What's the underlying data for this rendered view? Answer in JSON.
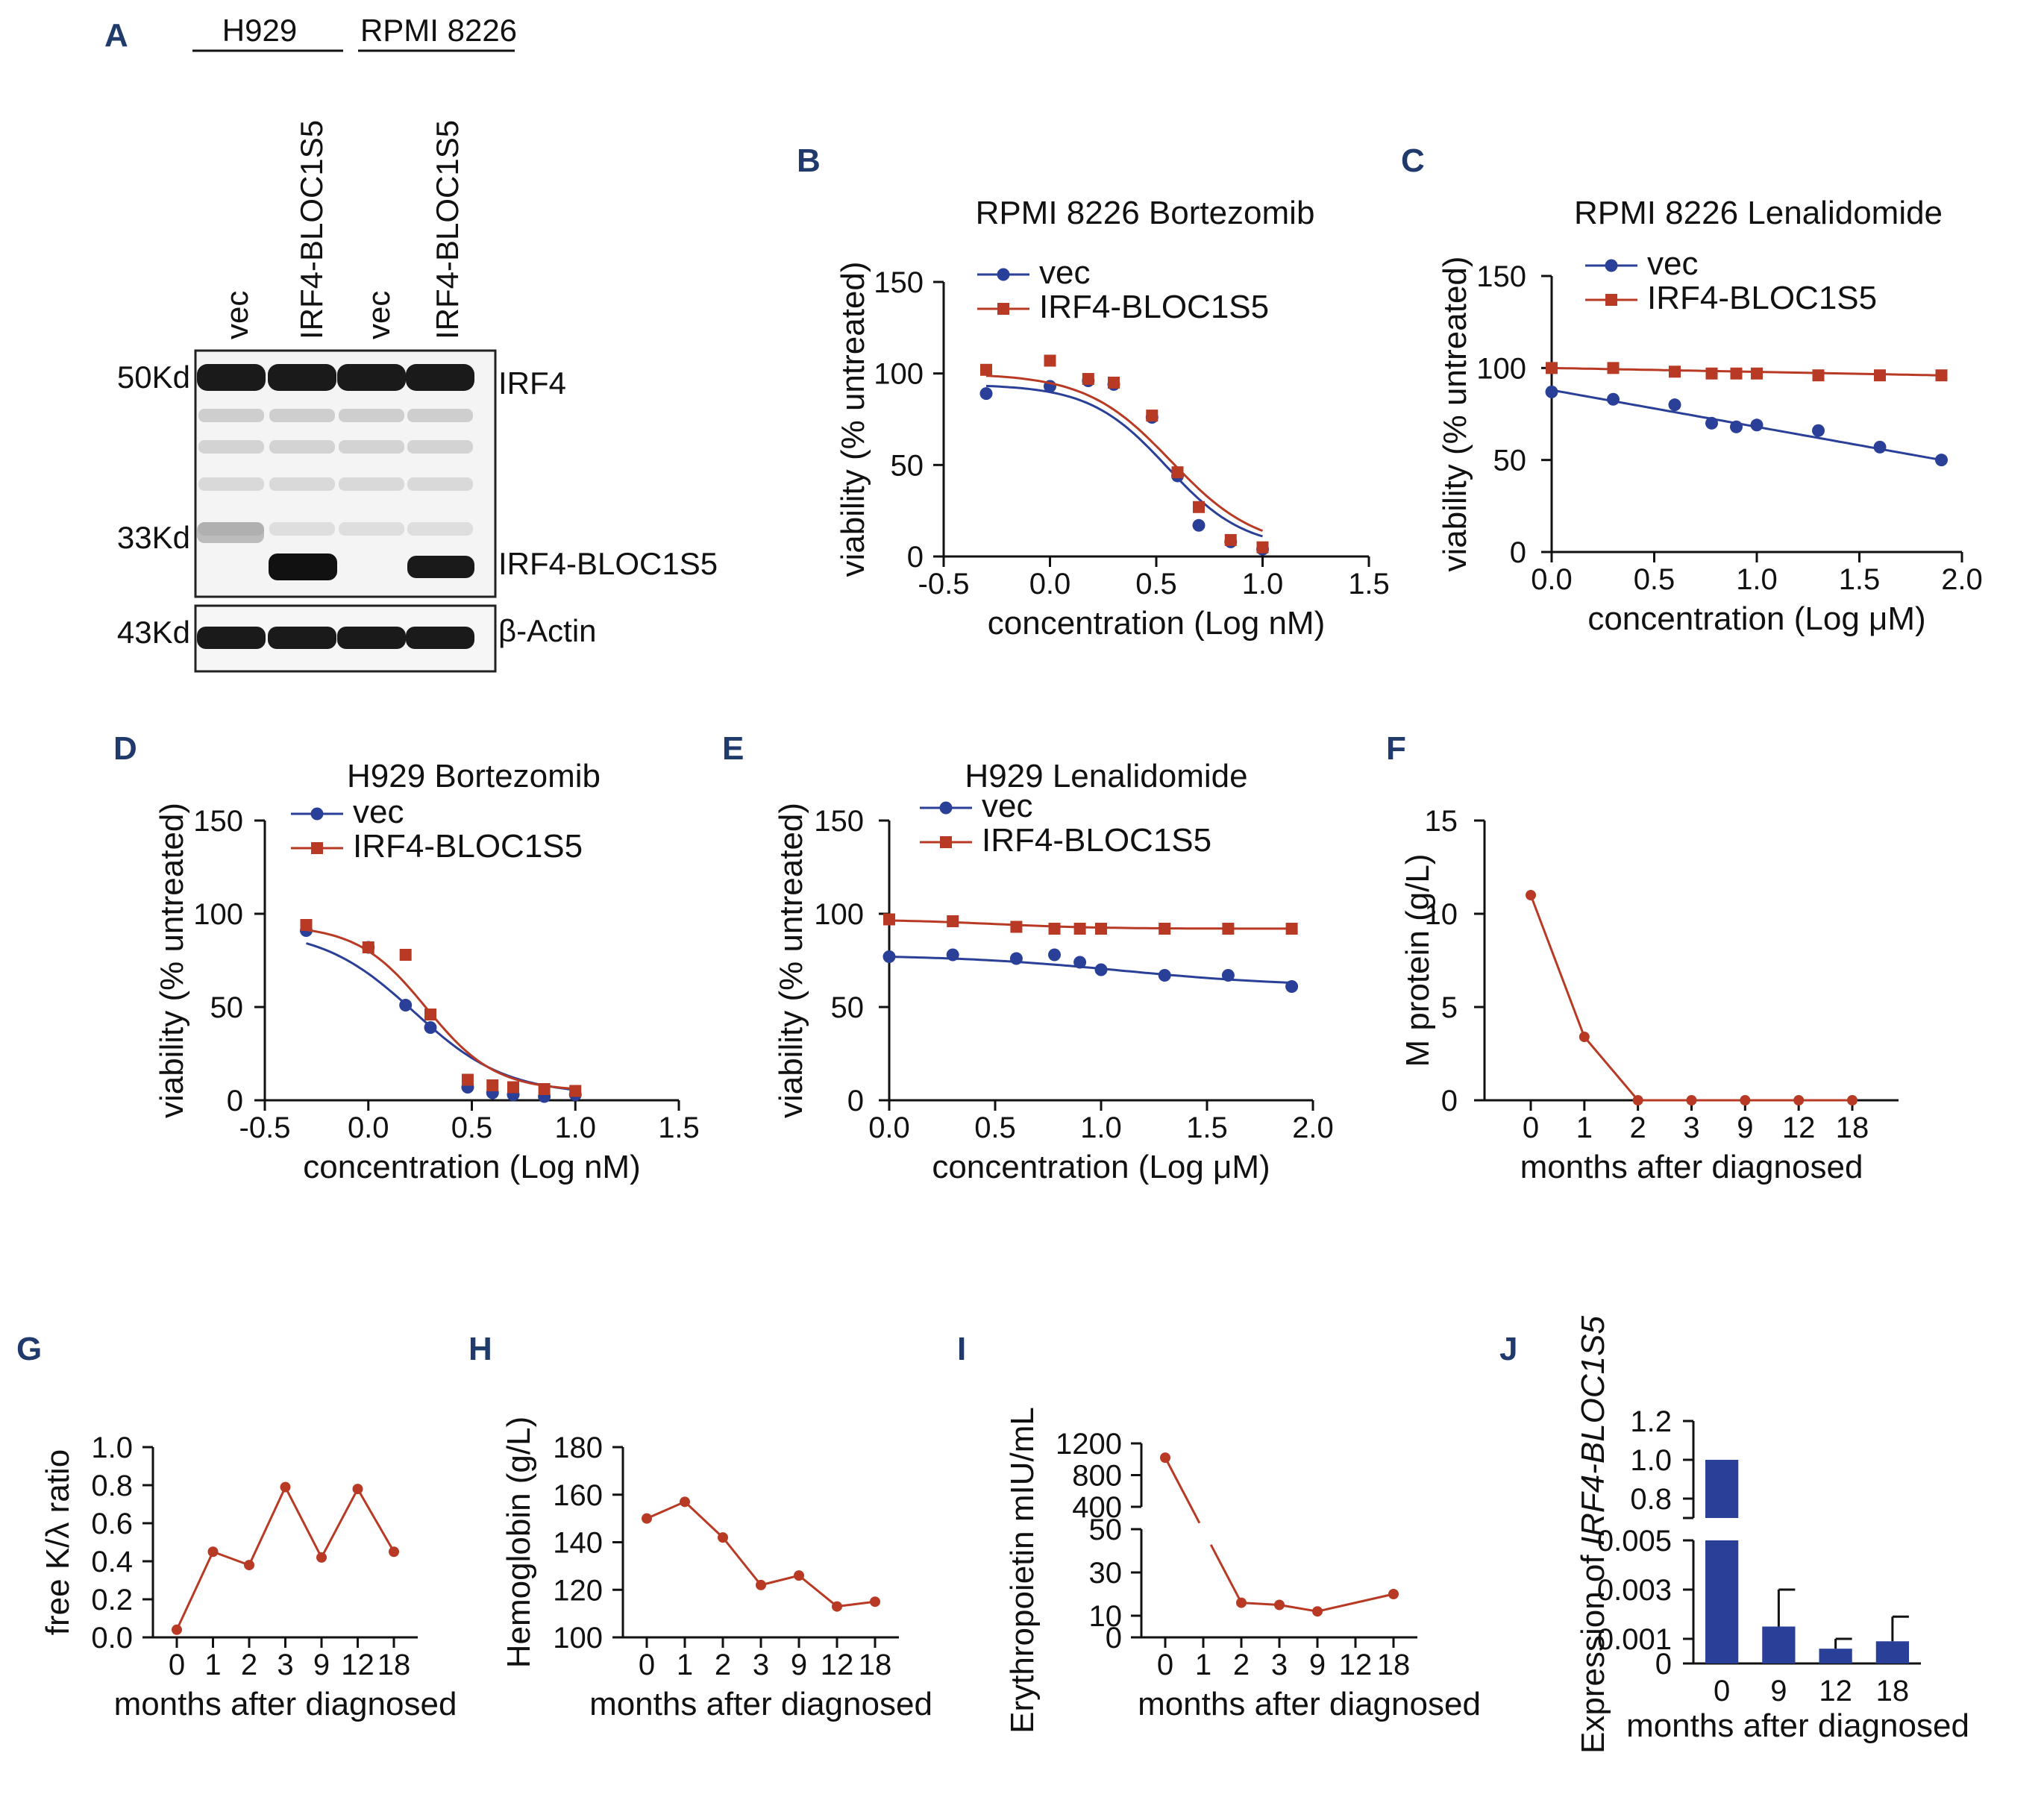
{
  "colors": {
    "blue": "#2a3f98",
    "red": "#b83a24",
    "panel": "#1f3a6b",
    "axis": "#111111"
  },
  "panel_a": {
    "letter": "A",
    "groups": [
      "H929",
      "RPMI 8226"
    ],
    "lanes": [
      "vec",
      "IRF4-BLOC1S5",
      "vec",
      "IRF4-BLOC1S5"
    ],
    "markers": [
      "50Kd",
      "33Kd",
      "43Kd"
    ],
    "bands": [
      "IRF4",
      "IRF4-BLOC1S5",
      "β-Actin"
    ]
  },
  "chart_data": [
    {
      "id": "B",
      "letter": "B",
      "type": "line",
      "title": "RPMI 8226 Bortezomib",
      "xlabel": "concentration (Log nM)",
      "ylabel": "viability (% untreated)",
      "xlim": [
        -0.5,
        1.5
      ],
      "ylim": [
        0,
        150
      ],
      "xticks": [
        -0.5,
        0.0,
        0.5,
        1.0,
        1.5
      ],
      "xtick_labels": [
        "-0.5",
        "0.0",
        "0.5",
        "1.0",
        "1.5"
      ],
      "yticks": [
        0,
        50,
        100,
        150
      ],
      "ytick_labels": [
        "0",
        "50",
        "100",
        "150"
      ],
      "legend": "top-left",
      "series": [
        {
          "name": "vec",
          "marker": "circle",
          "color": "#2a3f98",
          "x": [
            -0.3,
            0.0,
            0.18,
            0.3,
            0.48,
            0.6,
            0.7,
            0.85,
            1.0
          ],
          "y": [
            89,
            93,
            96,
            94,
            76,
            44,
            17,
            8,
            4
          ],
          "fit": {
            "kind": "sigmoid",
            "top": 94,
            "bottom": 4,
            "ec50": 0.55,
            "slope": 5.5
          }
        },
        {
          "name": "IRF4-BLOC1S5",
          "marker": "square",
          "color": "#b83a24",
          "x": [
            -0.3,
            0.0,
            0.18,
            0.3,
            0.48,
            0.6,
            0.7,
            0.85,
            1.0
          ],
          "y": [
            102,
            107,
            97,
            95,
            77,
            46,
            27,
            9,
            5
          ],
          "fit": {
            "kind": "sigmoid",
            "top": 100,
            "bottom": 4,
            "ec50": 0.57,
            "slope": 5.0
          }
        }
      ]
    },
    {
      "id": "C",
      "letter": "C",
      "type": "line",
      "title": "RPMI 8226 Lenalidomide",
      "xlabel": "concentration (Log μM)",
      "ylabel": "viability (% untreated)",
      "xlim": [
        0,
        2.0
      ],
      "ylim": [
        0,
        150
      ],
      "xticks": [
        0.0,
        0.5,
        1.0,
        1.5,
        2.0
      ],
      "xtick_labels": [
        "0.0",
        "0.5",
        "1.0",
        "1.5",
        "2.0"
      ],
      "yticks": [
        0,
        50,
        100,
        150
      ],
      "ytick_labels": [
        "0",
        "50",
        "100",
        "150"
      ],
      "legend": "top-left",
      "series": [
        {
          "name": "vec",
          "marker": "circle",
          "color": "#2a3f98",
          "x": [
            0.0,
            0.3,
            0.6,
            0.78,
            0.9,
            1.0,
            1.3,
            1.6,
            1.9
          ],
          "y": [
            87,
            83,
            80,
            70,
            68,
            69,
            66,
            57,
            50
          ],
          "fit": {
            "kind": "linear",
            "x0": 0.0,
            "y0": 88,
            "x1": 1.9,
            "y1": 50
          }
        },
        {
          "name": "IRF4-BLOC1S5",
          "marker": "square",
          "color": "#b83a24",
          "x": [
            0.0,
            0.3,
            0.6,
            0.78,
            0.9,
            1.0,
            1.3,
            1.6,
            1.9
          ],
          "y": [
            100,
            100,
            98,
            97,
            97,
            97,
            96,
            96,
            96
          ],
          "fit": {
            "kind": "linear",
            "x0": 0.0,
            "y0": 100,
            "x1": 1.9,
            "y1": 96
          }
        }
      ]
    },
    {
      "id": "D",
      "letter": "D",
      "type": "line",
      "title": "H929 Bortezomib",
      "xlabel": "concentration (Log nM)",
      "ylabel": "viability (% untreated)",
      "xlim": [
        -0.5,
        1.5
      ],
      "ylim": [
        0,
        150
      ],
      "xticks": [
        -0.5,
        0.0,
        0.5,
        1.0,
        1.5
      ],
      "xtick_labels": [
        "-0.5",
        "0.0",
        "0.5",
        "1.0",
        "1.5"
      ],
      "yticks": [
        0,
        50,
        100,
        150
      ],
      "ytick_labels": [
        "0",
        "50",
        "100",
        "150"
      ],
      "legend": "top-right",
      "series": [
        {
          "name": "vec",
          "marker": "circle",
          "color": "#2a3f98",
          "x": [
            -0.3,
            0.0,
            0.18,
            0.3,
            0.48,
            0.6,
            0.7,
            0.85,
            1.0
          ],
          "y": [
            91,
            82,
            51,
            39,
            7,
            4,
            3,
            2,
            3
          ],
          "fit": {
            "kind": "sigmoid",
            "top": 92,
            "bottom": 3,
            "ec50": 0.22,
            "slope": 4.5
          }
        },
        {
          "name": "IRF4-BLOC1S5",
          "marker": "square",
          "color": "#b83a24",
          "x": [
            -0.3,
            0.0,
            0.18,
            0.3,
            0.48,
            0.6,
            0.7,
            0.85,
            1.0
          ],
          "y": [
            94,
            82,
            78,
            46,
            11,
            8,
            7,
            6,
            5
          ],
          "fit": {
            "kind": "sigmoid",
            "top": 94,
            "bottom": 5,
            "ec50": 0.28,
            "slope": 6.0
          }
        }
      ]
    },
    {
      "id": "E",
      "letter": "E",
      "type": "line",
      "title": "H929 Lenalidomide",
      "xlabel": "concentration (Log μM)",
      "ylabel": "viability (% untreated)",
      "xlim": [
        0,
        2.0
      ],
      "ylim": [
        0,
        150
      ],
      "xticks": [
        0.0,
        0.5,
        1.0,
        1.5,
        2.0
      ],
      "xtick_labels": [
        "0.0",
        "0.5",
        "1.0",
        "1.5",
        "2.0"
      ],
      "yticks": [
        0,
        50,
        100,
        150
      ],
      "ytick_labels": [
        "0",
        "50",
        "100",
        "150"
      ],
      "legend": "top-left",
      "series": [
        {
          "name": "vec",
          "marker": "circle",
          "color": "#2a3f98",
          "x": [
            0.0,
            0.3,
            0.6,
            0.78,
            0.9,
            1.0,
            1.3,
            1.6,
            1.9
          ],
          "y": [
            77,
            78,
            76,
            78,
            74,
            70,
            67,
            67,
            61
          ],
          "fit": {
            "kind": "sigmoid",
            "top": 78,
            "bottom": 61,
            "ec50": 1.1,
            "slope": 2.5
          }
        },
        {
          "name": "IRF4-BLOC1S5",
          "marker": "square",
          "color": "#b83a24",
          "x": [
            0.0,
            0.3,
            0.6,
            0.78,
            0.9,
            1.0,
            1.3,
            1.6,
            1.9
          ],
          "y": [
            97,
            96,
            93,
            92,
            92,
            92,
            92,
            92,
            92
          ],
          "fit": {
            "kind": "sigmoid",
            "top": 97,
            "bottom": 92,
            "ec50": 0.5,
            "slope": 4.0
          }
        }
      ]
    },
    {
      "id": "F",
      "letter": "F",
      "type": "line",
      "xlabel": "months after diagnosed",
      "ylabel": "M protein (g/L)",
      "categories": [
        "0",
        "1",
        "2",
        "3",
        "9",
        "12",
        "18"
      ],
      "ylim": [
        0,
        15
      ],
      "yticks": [
        0,
        5,
        10,
        15
      ],
      "ytick_labels": [
        "0",
        "5",
        "10",
        "15"
      ],
      "series": [
        {
          "name": "M protein",
          "color": "#b83a24",
          "values": [
            11,
            3.4,
            0,
            0,
            0,
            0,
            0
          ]
        }
      ]
    },
    {
      "id": "G",
      "letter": "G",
      "type": "line",
      "xlabel": "months after diagnosed",
      "ylabel": "free K/λ ratio",
      "categories": [
        "0",
        "1",
        "2",
        "3",
        "9",
        "12",
        "18"
      ],
      "ylim": [
        0,
        1.0
      ],
      "yticks": [
        0,
        0.2,
        0.4,
        0.6,
        0.8,
        1.0
      ],
      "ytick_labels": [
        "0.0",
        "0.2",
        "0.4",
        "0.6",
        "0.8",
        "1.0"
      ],
      "series": [
        {
          "name": "free K/λ ratio",
          "color": "#b83a24",
          "values": [
            0.04,
            0.45,
            0.38,
            0.79,
            0.42,
            0.78,
            0.45
          ]
        }
      ]
    },
    {
      "id": "H",
      "letter": "H",
      "type": "line",
      "xlabel": "months after diagnosed",
      "ylabel": "Hemoglobin (g/L)",
      "categories": [
        "0",
        "1",
        "2",
        "3",
        "9",
        "12",
        "18"
      ],
      "ylim": [
        100,
        180
      ],
      "yticks": [
        100,
        120,
        140,
        160,
        180
      ],
      "ytick_labels": [
        "100",
        "120",
        "140",
        "160",
        "180"
      ],
      "series": [
        {
          "name": "Hemoglobin",
          "color": "#b83a24",
          "values": [
            150,
            157,
            142,
            122,
            126,
            113,
            115
          ]
        }
      ]
    },
    {
      "id": "I",
      "letter": "I",
      "type": "line",
      "xlabel": "months after diagnosed",
      "ylabel": "Erythropoietin mIU/mL",
      "categories": [
        "0",
        "1",
        "2",
        "3",
        "9",
        "12",
        "18"
      ],
      "ylim": [
        0,
        1200
      ],
      "axis_break": {
        "lower_max": 50,
        "upper_min": 400,
        "upper_max": 1200
      },
      "lower_ticks": [
        0,
        10,
        30,
        50
      ],
      "lower_tick_labels": [
        "0",
        "10",
        "30",
        "50"
      ],
      "upper_ticks": [
        400,
        800,
        1200
      ],
      "upper_tick_labels": [
        "400",
        "800",
        "1200"
      ],
      "series": [
        {
          "name": "Erythropoietin",
          "color": "#b83a24",
          "points": [
            {
              "cat": 0,
              "value": 1020
            },
            {
              "cat": 2,
              "value": 16
            },
            {
              "cat": 3,
              "value": 15
            },
            {
              "cat": 4,
              "value": 12
            },
            {
              "cat": 6,
              "value": 20
            }
          ]
        }
      ]
    },
    {
      "id": "J",
      "letter": "J",
      "type": "bar",
      "xlabel": "months after diagnosed",
      "ylabel": "Expression of IRF4-BLOC1S5",
      "ylabel_prefix": "Expression of ",
      "ylabel_italic": "IRF4-BLOC1S5",
      "categories": [
        "0",
        "9",
        "12",
        "18"
      ],
      "values": [
        1.0,
        0.0015,
        0.0006,
        0.0009
      ],
      "errors": [
        0.0,
        0.0015,
        0.0004,
        0.001
      ],
      "color": "#2a3f98",
      "axis_break": {
        "lower_max": 0.005,
        "upper_min": 0.7,
        "upper_max": 1.2
      },
      "lower_ticks": [
        0,
        0.001,
        0.003,
        0.005
      ],
      "lower_tick_labels": [
        "0",
        "0.001",
        "0.003",
        "0.005"
      ],
      "upper_ticks": [
        0.8,
        1.0,
        1.2
      ],
      "upper_tick_labels": [
        "0.8",
        "1.0",
        "1.2"
      ]
    }
  ]
}
